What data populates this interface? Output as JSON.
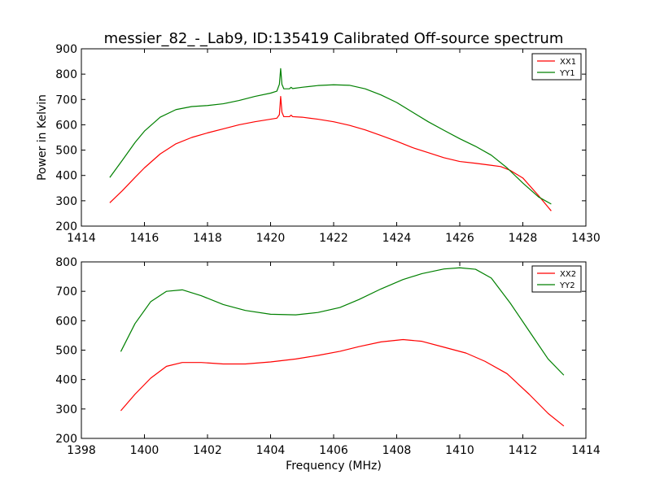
{
  "chart_data": [
    {
      "type": "line",
      "title": "messier_82_-_Lab9, ID:135419 Calibrated Off-source spectrum",
      "xlabel": "",
      "ylabel": "Power in Kelvin",
      "xlim": [
        1414,
        1430
      ],
      "ylim": [
        200,
        900
      ],
      "xticks": [
        1414,
        1416,
        1418,
        1420,
        1422,
        1424,
        1426,
        1428,
        1430
      ],
      "yticks": [
        200,
        300,
        400,
        500,
        600,
        700,
        800,
        900
      ],
      "legend_position": "top-right",
      "series": [
        {
          "name": "XX1",
          "color": "#ff0000",
          "x": [
            1414.9,
            1415.3,
            1415.7,
            1416.0,
            1416.5,
            1417.0,
            1417.5,
            1418.0,
            1418.5,
            1419.0,
            1419.5,
            1420.0,
            1420.2,
            1420.28,
            1420.32,
            1420.36,
            1420.42,
            1420.6,
            1420.65,
            1420.7,
            1421.0,
            1421.5,
            1422.0,
            1422.5,
            1423.0,
            1423.5,
            1424.0,
            1424.5,
            1425.0,
            1425.5,
            1426.0,
            1426.5,
            1427.0,
            1427.3,
            1427.6,
            1428.0,
            1428.5,
            1428.9
          ],
          "y": [
            292,
            340,
            392,
            430,
            485,
            525,
            550,
            568,
            584,
            600,
            612,
            622,
            626,
            640,
            712,
            650,
            632,
            632,
            638,
            632,
            630,
            622,
            612,
            598,
            580,
            558,
            535,
            510,
            490,
            470,
            455,
            448,
            440,
            435,
            420,
            390,
            320,
            260
          ]
        },
        {
          "name": "YY1",
          "color": "#008000",
          "x": [
            1414.9,
            1415.3,
            1415.7,
            1416.0,
            1416.5,
            1417.0,
            1417.5,
            1418.0,
            1418.5,
            1419.0,
            1419.5,
            1420.0,
            1420.2,
            1420.28,
            1420.32,
            1420.36,
            1420.42,
            1420.6,
            1420.65,
            1420.7,
            1421.0,
            1421.5,
            1422.0,
            1422.5,
            1423.0,
            1423.5,
            1424.0,
            1424.5,
            1425.0,
            1425.5,
            1426.0,
            1426.5,
            1427.0,
            1427.5,
            1428.0,
            1428.5,
            1428.9
          ],
          "y": [
            392,
            460,
            530,
            575,
            630,
            660,
            672,
            676,
            683,
            696,
            712,
            725,
            733,
            760,
            822,
            760,
            742,
            742,
            748,
            743,
            748,
            755,
            758,
            756,
            742,
            718,
            688,
            650,
            612,
            578,
            545,
            515,
            480,
            430,
            370,
            315,
            287
          ]
        }
      ]
    },
    {
      "type": "line",
      "title": "",
      "xlabel": "Frequency (MHz)",
      "ylabel": "",
      "xlim": [
        1398,
        1414
      ],
      "ylim": [
        200,
        800
      ],
      "xticks": [
        1398,
        1400,
        1402,
        1404,
        1406,
        1408,
        1410,
        1412,
        1414
      ],
      "yticks": [
        200,
        300,
        400,
        500,
        600,
        700,
        800
      ],
      "legend_position": "top-right",
      "series": [
        {
          "name": "XX2",
          "color": "#ff0000",
          "x": [
            1399.25,
            1399.7,
            1400.2,
            1400.7,
            1401.2,
            1401.8,
            1402.5,
            1403.2,
            1404.0,
            1404.8,
            1405.5,
            1406.2,
            1406.8,
            1407.5,
            1408.2,
            1408.8,
            1409.5,
            1410.2,
            1410.8,
            1411.5,
            1412.2,
            1412.8,
            1413.3
          ],
          "y": [
            294,
            350,
            405,
            445,
            458,
            458,
            453,
            453,
            460,
            470,
            482,
            496,
            512,
            528,
            536,
            530,
            510,
            490,
            462,
            420,
            350,
            285,
            242
          ]
        },
        {
          "name": "YY2",
          "color": "#008000",
          "x": [
            1399.25,
            1399.7,
            1400.2,
            1400.7,
            1401.2,
            1401.8,
            1402.5,
            1403.2,
            1404.0,
            1404.8,
            1405.5,
            1406.2,
            1406.8,
            1407.5,
            1408.2,
            1408.8,
            1409.5,
            1410.0,
            1410.5,
            1411.0,
            1411.6,
            1412.2,
            1412.8,
            1413.3
          ],
          "y": [
            495,
            590,
            665,
            700,
            705,
            685,
            655,
            635,
            622,
            620,
            628,
            645,
            672,
            708,
            740,
            760,
            776,
            780,
            775,
            745,
            660,
            565,
            470,
            415
          ]
        }
      ]
    }
  ]
}
